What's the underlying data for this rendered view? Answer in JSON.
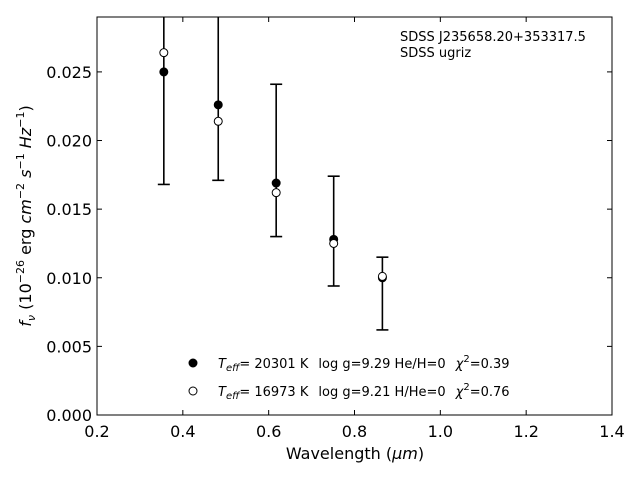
{
  "chart_data": {
    "type": "scatter",
    "xlabel_main": "Wavelength (",
    "xlabel_unit": "μm",
    "xlabel_close": ")",
    "ylabel": "f_ν (10^-26 erg cm^-2 s^-1 Hz^-1)",
    "xlim": [
      0.2,
      1.4
    ],
    "ylim": [
      0.0,
      0.029
    ],
    "xticks": [
      0.2,
      0.4,
      0.6,
      0.8,
      1.0,
      1.2,
      1.4
    ],
    "xtick_labels": [
      "0.2",
      "0.4",
      "0.6",
      "0.8",
      "1.0",
      "1.2",
      "1.4"
    ],
    "yticks": [
      0.0,
      0.005,
      0.01,
      0.015,
      0.02,
      0.025
    ],
    "ytick_labels": [
      "0.000",
      "0.005",
      "0.010",
      "0.015",
      "0.020",
      "0.025"
    ],
    "annotation_line1": "SDSS J235658.20+353317.5",
    "annotation_line2": "SDSS ugriz",
    "observed": {
      "x": [
        0.3557,
        0.4825,
        0.6175,
        0.7515,
        0.865
      ],
      "y_low": [
        0.0168,
        0.0171,
        0.013,
        0.0094,
        0.0062
      ],
      "y_high": [
        0.029,
        0.029,
        0.0241,
        0.0174,
        0.0115
      ]
    },
    "series": [
      {
        "marker": "filled",
        "x": [
          0.3557,
          0.4825,
          0.6175,
          0.7515,
          0.865
        ],
        "values": [
          0.025,
          0.0226,
          0.0169,
          0.0128,
          0.01
        ],
        "legend": {
          "teff_value": "= 20301 K",
          "rest": "log g=9.29  He/H=0",
          "chi_value": "=0.39"
        }
      },
      {
        "marker": "open",
        "x": [
          0.3557,
          0.4825,
          0.6175,
          0.7515,
          0.865
        ],
        "values": [
          0.0264,
          0.0214,
          0.0162,
          0.0125,
          0.0101
        ],
        "legend": {
          "teff_value": "= 16973 K",
          "rest": "log g=9.21  H/He=0",
          "chi_value": "=0.76"
        }
      }
    ]
  }
}
